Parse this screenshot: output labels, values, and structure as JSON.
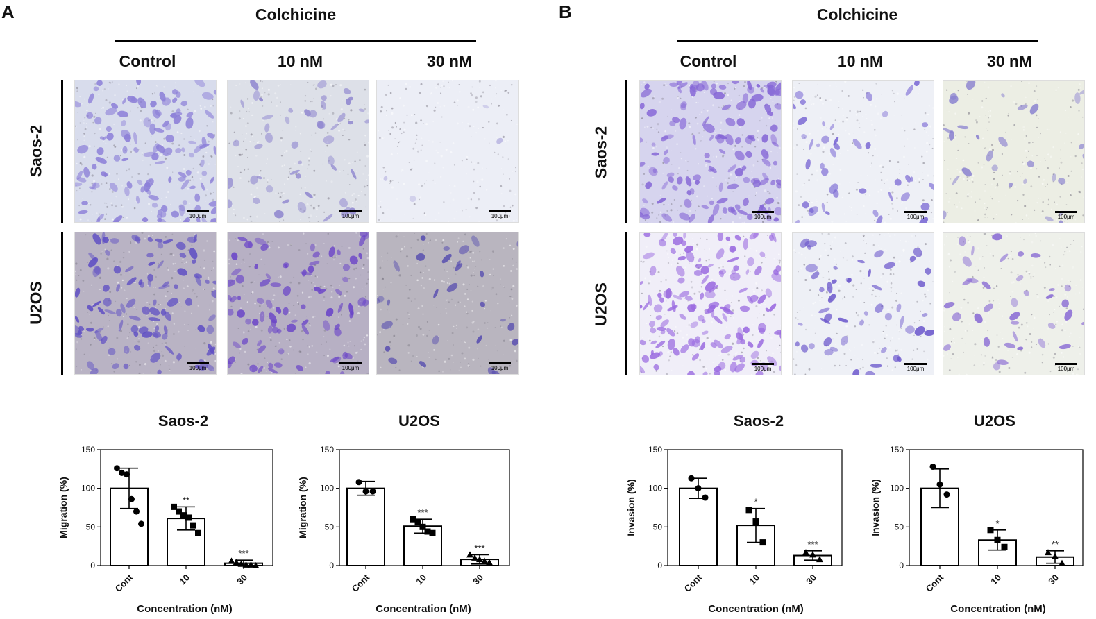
{
  "panel_a": {
    "letter": "A",
    "header": "Colchicine",
    "columns": [
      "Control",
      "10 nM",
      "30 nM"
    ],
    "rows": [
      "Saos-2",
      "U2OS"
    ],
    "scale_label": "100μm",
    "tiles": [
      {
        "id": "a-saos-control",
        "density": 0.9,
        "base": "#d8dcec",
        "stain": "#8c7fd8"
      },
      {
        "id": "a-saos-10",
        "density": 0.35,
        "base": "#dde0e8",
        "stain": "#8f86cf"
      },
      {
        "id": "a-saos-30",
        "density": 0.03,
        "base": "#eceef6",
        "stain": "#b8b4e0"
      },
      {
        "id": "a-u2os-control",
        "density": 0.7,
        "base": "#b9b3c4",
        "stain": "#5f4fc4"
      },
      {
        "id": "a-u2os-10",
        "density": 0.6,
        "base": "#b7b0c4",
        "stain": "#6a44c8"
      },
      {
        "id": "a-u2os-30",
        "density": 0.2,
        "base": "#b9b5bf",
        "stain": "#5a50b0"
      }
    ]
  },
  "panel_b": {
    "letter": "B",
    "header": "Colchicine",
    "columns": [
      "Control",
      "10 nM",
      "30 nM"
    ],
    "rows": [
      "Saos-2",
      "U2OS"
    ],
    "scale_label": "100μm",
    "tiles": [
      {
        "id": "b-saos-control",
        "density": 0.95,
        "base": "#d6d4ee",
        "stain": "#8566d6"
      },
      {
        "id": "b-saos-10",
        "density": 0.3,
        "base": "#eef0f6",
        "stain": "#7a68d4"
      },
      {
        "id": "b-saos-30",
        "density": 0.2,
        "base": "#eceee4",
        "stain": "#8b82d0"
      },
      {
        "id": "b-u2os-control",
        "density": 1.0,
        "base": "#f0eef8",
        "stain": "#9a6ae0"
      },
      {
        "id": "b-u2os-10",
        "density": 0.35,
        "base": "#eef0f6",
        "stain": "#6c58cc"
      },
      {
        "id": "b-u2os-30",
        "density": 0.25,
        "base": "#eef0ea",
        "stain": "#8a6cd4"
      }
    ]
  },
  "chart_data": [
    {
      "id": "chart-a1",
      "type": "bar",
      "title": "Saos-2",
      "ylabel": "Migration (%)",
      "xlabel": "Concentration (nM)",
      "categories": [
        "Cont",
        "10",
        "30"
      ],
      "ylim": [
        0,
        150
      ],
      "yticks": [
        0,
        50,
        100,
        150
      ],
      "values": [
        100,
        61,
        3
      ],
      "errors": [
        26,
        15,
        4
      ],
      "significance": [
        "",
        "**",
        "***"
      ],
      "points": [
        [
          126,
          120,
          118,
          86,
          70,
          54
        ],
        [
          76,
          70,
          65,
          62,
          52,
          42
        ],
        [
          6,
          4,
          2,
          1,
          1,
          0
        ]
      ],
      "markers": [
        "circle",
        "square",
        "triangle"
      ]
    },
    {
      "id": "chart-a2",
      "type": "bar",
      "title": "U2OS",
      "ylabel": "Migration (%)",
      "xlabel": "Concentration (nM)",
      "categories": [
        "Cont",
        "10",
        "30"
      ],
      "ylim": [
        0,
        150
      ],
      "yticks": [
        0,
        50,
        100,
        150
      ],
      "values": [
        100,
        51,
        8
      ],
      "errors": [
        9,
        9,
        6
      ],
      "significance": [
        "",
        "***",
        "***"
      ],
      "points": [
        [
          108,
          96,
          96
        ],
        [
          60,
          56,
          50,
          44,
          42
        ],
        [
          14,
          10,
          8,
          6,
          4
        ]
      ],
      "markers": [
        "circle",
        "square",
        "triangle"
      ]
    },
    {
      "id": "chart-b1",
      "type": "bar",
      "title": "Saos-2",
      "ylabel": "Invasion (%)",
      "xlabel": "Concentration (nM)",
      "categories": [
        "Cont",
        "10",
        "30"
      ],
      "ylim": [
        0,
        150
      ],
      "yticks": [
        0,
        50,
        100,
        150
      ],
      "values": [
        100,
        52,
        13
      ],
      "errors": [
        13,
        22,
        6
      ],
      "significance": [
        "",
        "*",
        "***"
      ],
      "points": [
        [
          113,
          100,
          88
        ],
        [
          72,
          57,
          30
        ],
        [
          17,
          14,
          8
        ]
      ],
      "markers": [
        "circle",
        "square",
        "triangle"
      ]
    },
    {
      "id": "chart-b2",
      "type": "bar",
      "title": "U2OS",
      "ylabel": "Invasion (%)",
      "xlabel": "Concentration (nM)",
      "categories": [
        "Cont",
        "10",
        "30"
      ],
      "ylim": [
        0,
        150
      ],
      "yticks": [
        0,
        50,
        100,
        150
      ],
      "values": [
        100,
        33,
        11
      ],
      "errors": [
        25,
        13,
        8
      ],
      "significance": [
        "",
        "*",
        "**"
      ],
      "points": [
        [
          128,
          105,
          92
        ],
        [
          46,
          33,
          24
        ],
        [
          17,
          12,
          3
        ]
      ],
      "markers": [
        "circle",
        "square",
        "triangle"
      ]
    }
  ]
}
